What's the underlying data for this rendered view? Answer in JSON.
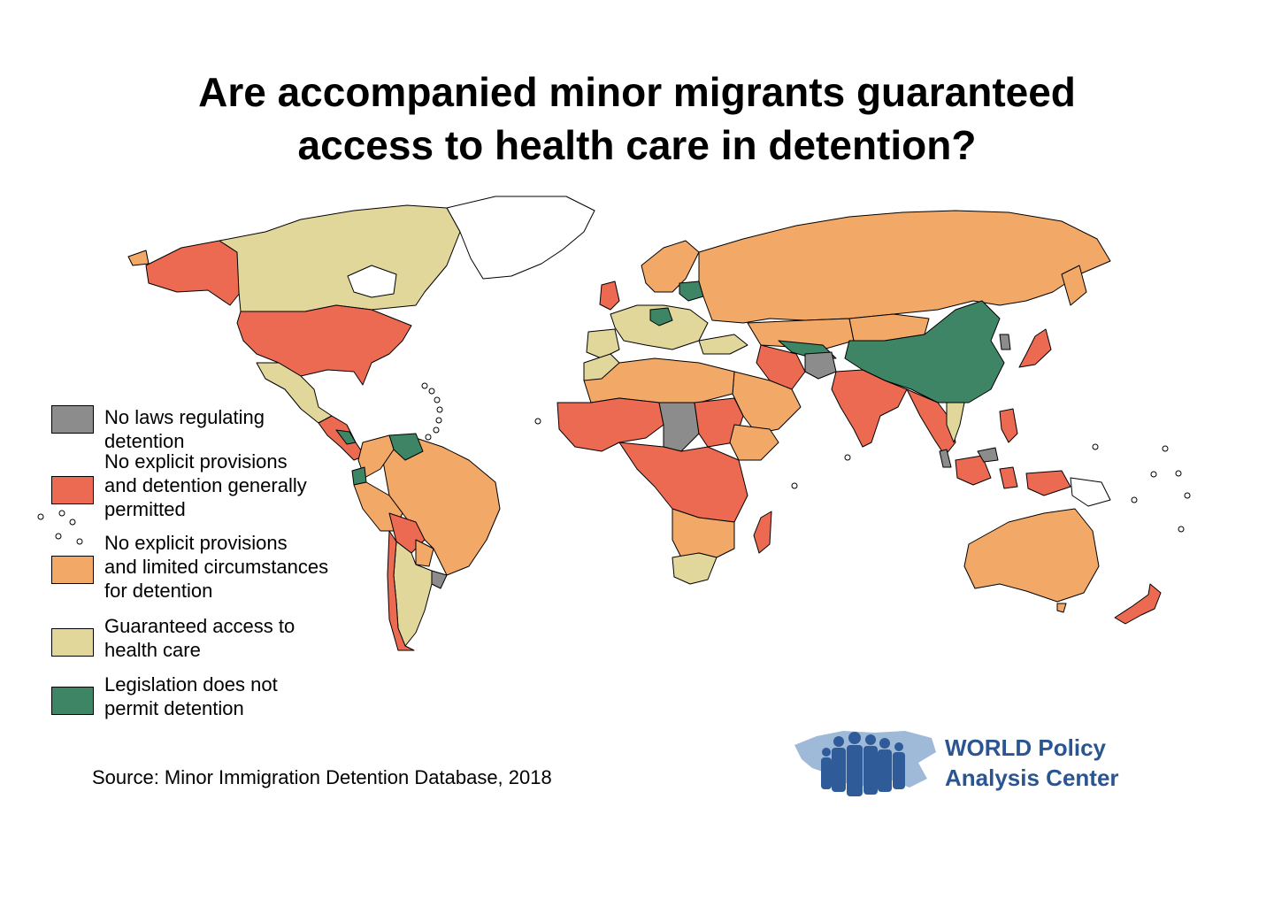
{
  "title": {
    "line1": "Are accompanied minor migrants guaranteed",
    "line2": "access to health care in detention?"
  },
  "legend": [
    {
      "key": "no-laws",
      "lines": [
        "No laws regulating",
        "detention"
      ],
      "color": "#8c8c8c"
    },
    {
      "key": "no-provisions-permitted",
      "lines": [
        "No explicit provisions",
        "and detention generally",
        "permitted"
      ],
      "color": "#ec6a52"
    },
    {
      "key": "no-provisions-limited",
      "lines": [
        "No explicit provisions",
        "and limited circumstances",
        "for detention"
      ],
      "color": "#f2a866"
    },
    {
      "key": "guaranteed",
      "lines": [
        "Guaranteed access to",
        "health care"
      ],
      "color": "#e2d79b"
    },
    {
      "key": "not-permitted",
      "lines": [
        "Legislation does not",
        "permit detention"
      ],
      "color": "#3e8566"
    }
  ],
  "colors": {
    "no_data": "#ffffff",
    "border": "#000000",
    "logo_text": "#2a5591",
    "logo_map": "#9fb9d8",
    "logo_figures": "#2f5c98"
  },
  "source": "Source: Minor Immigration Detention Database, 2018",
  "logo": {
    "line1": "WORLD Policy",
    "line2": "Analysis Center"
  }
}
